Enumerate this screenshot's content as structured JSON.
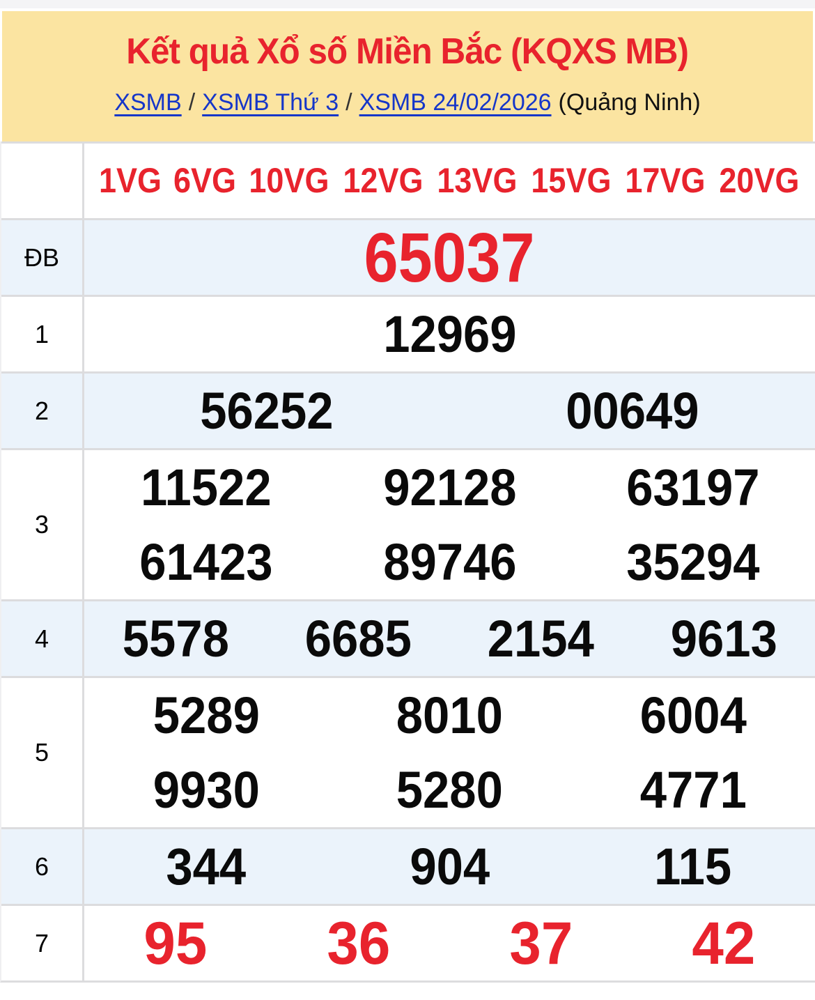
{
  "header": {
    "title": "Kết quả Xổ số Miền Bắc (KQXS MB)",
    "breadcrumb": {
      "links": [
        "XSMB",
        "XSMB Thứ 3",
        "XSMB 24/02/2026"
      ],
      "separator": "/",
      "suffix": "(Quảng Ninh)"
    }
  },
  "colors": {
    "accent_red": "#E8232D",
    "link_blue": "#1636C9",
    "header_yellow": "#FBE4A1",
    "shaded_row_blue": "#EBF3FB",
    "border_gray": "#DCDCDE",
    "number_black": "#0A0A0A"
  },
  "results": {
    "vg_labels": [
      "1VG",
      "6VG",
      "10VG",
      "12VG",
      "13VG",
      "15VG",
      "17VG",
      "20VG"
    ],
    "prizes": [
      {
        "label": "ĐB",
        "numbers": [
          "65037"
        ],
        "per_row": 1,
        "style": "special"
      },
      {
        "label": "1",
        "numbers": [
          "12969"
        ],
        "per_row": 1
      },
      {
        "label": "2",
        "numbers": [
          "56252",
          "00649"
        ],
        "per_row": 2
      },
      {
        "label": "3",
        "numbers": [
          "11522",
          "92128",
          "63197",
          "61423",
          "89746",
          "35294"
        ],
        "per_row": 3
      },
      {
        "label": "4",
        "numbers": [
          "5578",
          "6685",
          "2154",
          "9613"
        ],
        "per_row": 4
      },
      {
        "label": "5",
        "numbers": [
          "5289",
          "8010",
          "6004",
          "9930",
          "5280",
          "4771"
        ],
        "per_row": 3
      },
      {
        "label": "6",
        "numbers": [
          "344",
          "904",
          "115"
        ],
        "per_row": 3
      },
      {
        "label": "7",
        "numbers": [
          "95",
          "36",
          "37",
          "42"
        ],
        "per_row": 4,
        "style": "red"
      }
    ]
  }
}
